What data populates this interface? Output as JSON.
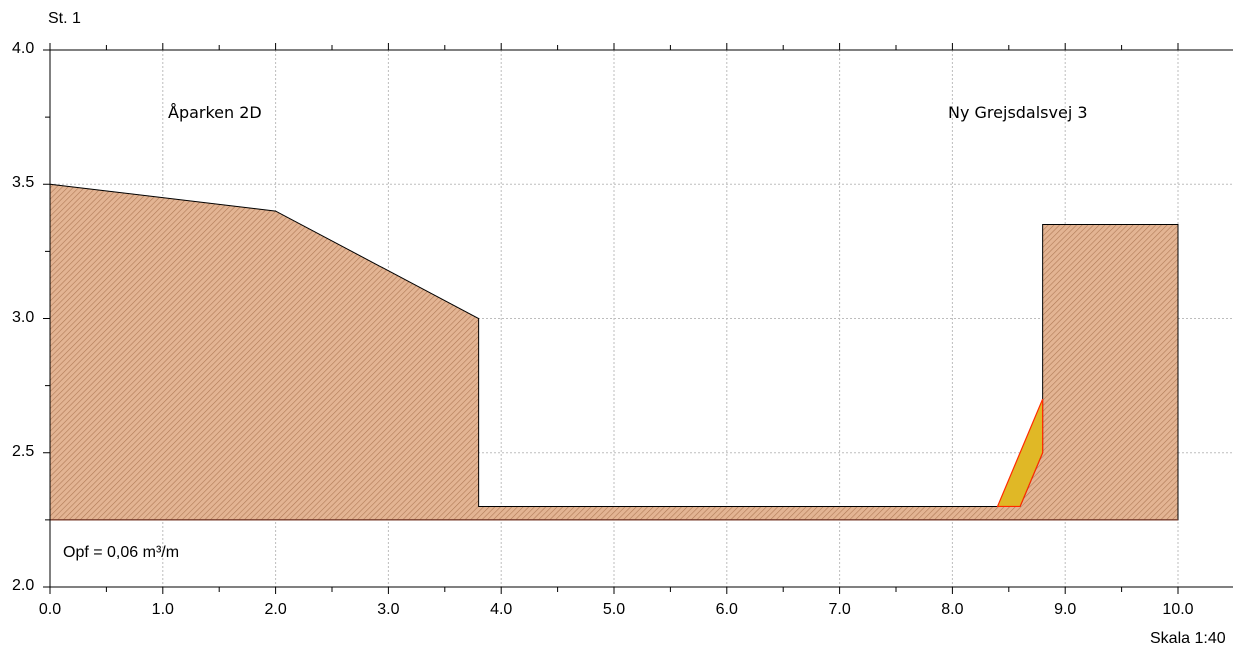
{
  "header": {
    "station": "St. 1"
  },
  "labels": {
    "left_owner": "Åparken 2D",
    "right_owner": "Ny Grejsdalsvej 3",
    "opf_text": "Opf = 0,06 m³/m",
    "scale": "Skala 1:40"
  },
  "colors": {
    "soil_fill": "#e3b493",
    "soil_hatch": "#b07a56",
    "fill_yellow": "#e0b826",
    "fill_outline": "#ff2a00",
    "outline": "#000000",
    "grid": "#bdbdbd"
  },
  "chart_data": {
    "type": "area",
    "x_ticks": [
      "0.0",
      "1.0",
      "2.0",
      "3.0",
      "4.0",
      "5.0",
      "6.0",
      "7.0",
      "8.0",
      "9.0",
      "10.0"
    ],
    "y_ticks": [
      "2.0",
      "2.5",
      "3.0",
      "3.5",
      "4.0"
    ],
    "xlim": [
      0,
      10.5
    ],
    "ylim": [
      2.0,
      4.0
    ],
    "grid": true,
    "base_level": 2.25,
    "terrain": [
      {
        "x": 0.0,
        "y": 3.5
      },
      {
        "x": 2.0,
        "y": 3.4
      },
      {
        "x": 3.8,
        "y": 3.0
      },
      {
        "x": 3.8,
        "y": 2.3
      },
      {
        "x": 8.4,
        "y": 2.3
      },
      {
        "x": 8.6,
        "y": 2.3
      },
      {
        "x": 8.8,
        "y": 2.5
      },
      {
        "x": 8.8,
        "y": 3.35
      },
      {
        "x": 10.0,
        "y": 3.35
      },
      {
        "x": 10.0,
        "y": 2.25
      }
    ],
    "fill_area": [
      {
        "x": 8.4,
        "y": 2.3
      },
      {
        "x": 8.8,
        "y": 2.7
      },
      {
        "x": 8.8,
        "y": 2.5
      },
      {
        "x": 8.6,
        "y": 2.3
      }
    ]
  }
}
